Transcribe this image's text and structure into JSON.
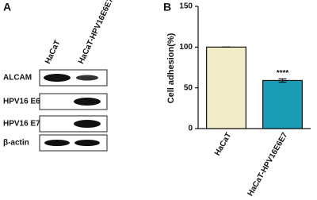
{
  "blot": {
    "panel_label": "A",
    "columns": [
      "HaCaT",
      "HaCaT-HPV16E6E7"
    ],
    "rows": [
      "ALCAM",
      "HPV16 E6",
      "HPV16 E7",
      "β-actin"
    ]
  },
  "chart_data": {
    "type": "bar",
    "panel_label": "B",
    "ylabel": "Cell adhesion(%)",
    "categories": [
      "HaCaT",
      "HaCaT-HPV16E6E7"
    ],
    "values": [
      100,
      59
    ],
    "errors": [
      0,
      2
    ],
    "colors": [
      "#f3ecc9",
      "#1b9cb6"
    ],
    "annotation": "****",
    "ylim": [
      0,
      150
    ],
    "yticks": [
      0,
      50,
      100,
      150
    ]
  }
}
